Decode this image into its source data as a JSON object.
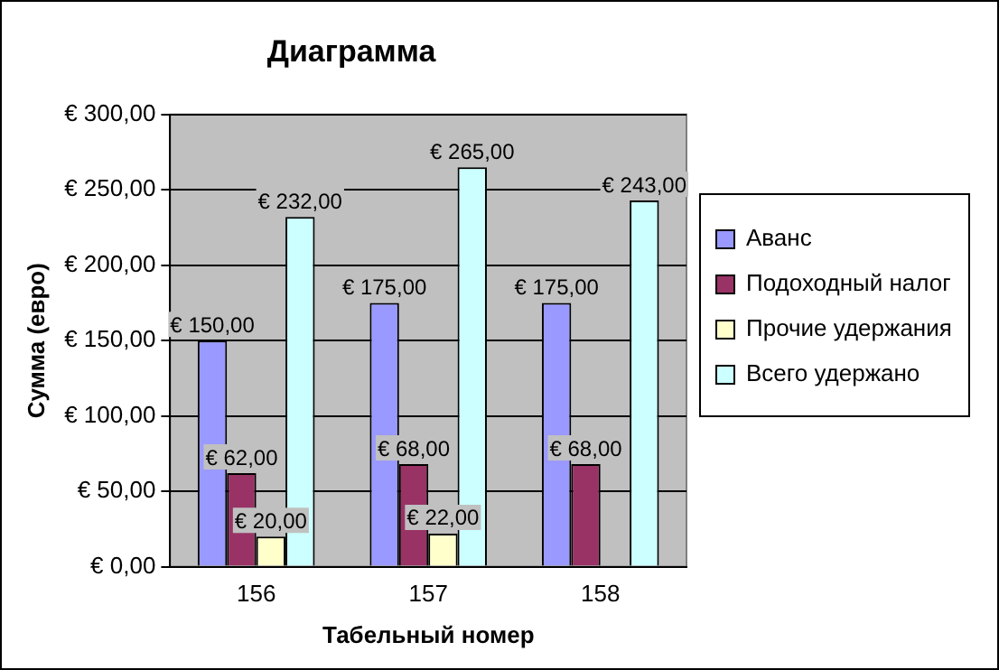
{
  "chart_data": {
    "type": "bar",
    "title": "Диаграмма",
    "xlabel": "Табельный номер",
    "ylabel": "Сумма (евро)",
    "categories": [
      "156",
      "157",
      "158"
    ],
    "series": [
      {
        "name": "Аванс",
        "color": "#9999ff",
        "values": [
          150,
          175,
          175
        ],
        "value_labels": [
          "€ 150,00",
          "€ 175,00",
          "€ 175,00"
        ]
      },
      {
        "name": "Подоходный налог",
        "color": "#993366",
        "values": [
          62,
          68,
          68
        ],
        "value_labels": [
          "€ 62,00",
          "€ 68,00",
          "€ 68,00"
        ]
      },
      {
        "name": "Прочие удержания",
        "color": "#ffffcc",
        "values": [
          20,
          22,
          null
        ],
        "value_labels": [
          "€ 20,00",
          "€ 22,00",
          null
        ]
      },
      {
        "name": "Всего удержано",
        "color": "#ccffff",
        "values": [
          232,
          265,
          243
        ],
        "value_labels": [
          "€ 232,00",
          "€ 265,00",
          "€ 243,00"
        ]
      }
    ],
    "ylim": [
      0,
      300
    ],
    "yticks": [
      {
        "value": 0,
        "label": "€ 0,00"
      },
      {
        "value": 50,
        "label": "€ 50,00"
      },
      {
        "value": 100,
        "label": "€ 100,00"
      },
      {
        "value": 150,
        "label": "€ 150,00"
      },
      {
        "value": 200,
        "label": "€ 200,00"
      },
      {
        "value": 250,
        "label": "€ 250,00"
      },
      {
        "value": 300,
        "label": "€ 300,00"
      }
    ],
    "grid": "y",
    "legend": "right"
  }
}
